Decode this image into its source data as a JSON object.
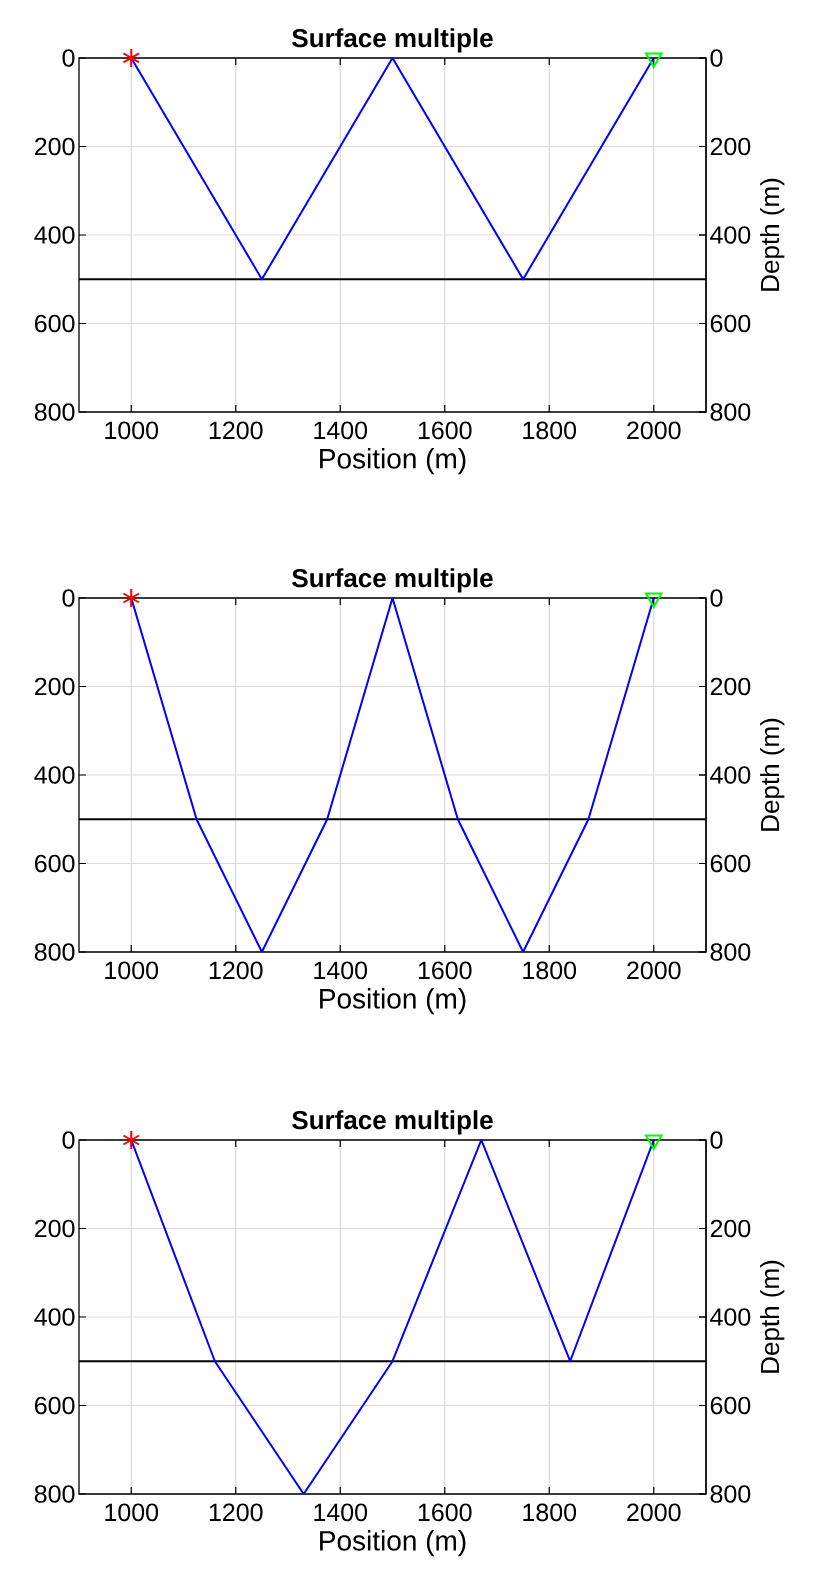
{
  "chart_data": [
    {
      "type": "line",
      "title": "Surface multiple",
      "xlabel": "Position (m)",
      "y2label": "Depth (m)",
      "xlim": [
        900,
        2100
      ],
      "ylim": [
        800,
        0
      ],
      "y2lim": [
        800,
        0
      ],
      "xticks": [
        1000,
        1200,
        1400,
        1600,
        1800,
        2000
      ],
      "yticks": [
        0,
        200,
        400,
        600,
        800
      ],
      "y2ticks": [
        0,
        200,
        400,
        600,
        800
      ],
      "grid": true,
      "ref_lines": [
        {
          "axis": "y",
          "value": 500,
          "color": "#000000"
        }
      ],
      "series": [
        {
          "color": "#0000ff",
          "marker": "none",
          "x": [
            1000,
            1250,
            1500,
            1750,
            2000
          ],
          "values": [
            0,
            500,
            0,
            500,
            0
          ]
        },
        {
          "type": "scatter",
          "color": "#ff0000",
          "marker": "cross",
          "x": [
            1000
          ],
          "values": [
            0
          ]
        },
        {
          "type": "scatter",
          "color": "#00ff00",
          "marker": "triangle",
          "x": [
            2000
          ],
          "values": [
            0
          ]
        }
      ]
    },
    {
      "type": "line",
      "title": "Surface multiple",
      "xlabel": "Position (m)",
      "y2label": "Depth (m)",
      "xlim": [
        900,
        2100
      ],
      "ylim": [
        800,
        0
      ],
      "y2lim": [
        800,
        0
      ],
      "xticks": [
        1000,
        1200,
        1400,
        1600,
        1800,
        2000
      ],
      "yticks": [
        0,
        200,
        400,
        600,
        800
      ],
      "y2ticks": [
        0,
        200,
        400,
        600,
        800
      ],
      "grid": true,
      "ref_lines": [
        {
          "axis": "y",
          "value": 500,
          "color": "#000000"
        }
      ],
      "series": [
        {
          "color": "#0000ff",
          "marker": "none",
          "x": [
            1000,
            1125,
            1250,
            1375,
            1500,
            1625,
            1750,
            1875,
            2000
          ],
          "values": [
            0,
            500,
            800,
            500,
            0,
            500,
            800,
            500,
            0
          ]
        },
        {
          "type": "scatter",
          "color": "#ff0000",
          "marker": "cross",
          "x": [
            1000
          ],
          "values": [
            0
          ]
        },
        {
          "type": "scatter",
          "color": "#00ff00",
          "marker": "triangle",
          "x": [
            2000
          ],
          "values": [
            0
          ]
        }
      ]
    },
    {
      "type": "line",
      "title": "Surface multiple",
      "xlabel": "Position (m)",
      "y2label": "Depth (m)",
      "xlim": [
        900,
        2100
      ],
      "ylim": [
        800,
        0
      ],
      "y2lim": [
        800,
        0
      ],
      "xticks": [
        1000,
        1200,
        1400,
        1600,
        1800,
        2000
      ],
      "yticks": [
        0,
        200,
        400,
        600,
        800
      ],
      "y2ticks": [
        0,
        200,
        400,
        600,
        800
      ],
      "grid": true,
      "ref_lines": [
        {
          "axis": "y",
          "value": 500,
          "color": "#000000"
        }
      ],
      "series": [
        {
          "color": "#0000ff",
          "marker": "none",
          "x": [
            1000,
            1160,
            1330,
            1500,
            1670,
            1840,
            2000
          ],
          "values": [
            0,
            500,
            800,
            500,
            0,
            500,
            0
          ]
        },
        {
          "type": "scatter",
          "color": "#ff0000",
          "marker": "cross",
          "x": [
            1000
          ],
          "values": [
            0
          ]
        },
        {
          "type": "scatter",
          "color": "#00ff00",
          "marker": "triangle",
          "x": [
            2000
          ],
          "values": [
            0
          ]
        }
      ]
    }
  ]
}
